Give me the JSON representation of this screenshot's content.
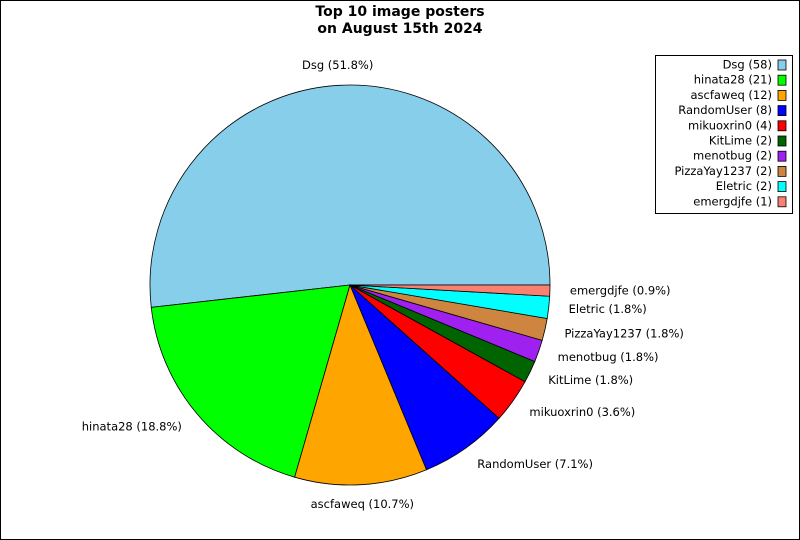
{
  "chart_data": {
    "type": "pie",
    "title": [
      "Top 10 image posters",
      "on August 15th 2024"
    ],
    "categories": [
      "Dsg (58)",
      "hinata28 (21)",
      "ascfaweq (12)",
      "RandomUser (8)",
      "mikuoxrin0 (4)",
      "KitLime (2)",
      "menotbug (2)",
      "PizzaYay1237 (2)",
      "Eletric (2)",
      "emergdjfe (1)"
    ],
    "values": [
      58,
      21,
      12,
      8,
      4,
      2,
      2,
      2,
      2,
      1
    ],
    "value_labels": [
      "Dsg (51.8%)",
      "hinata28 (18.8%)",
      "ascfaweq (10.7%)",
      "RandomUser (7.1%)",
      "mikuoxrin0 (3.6%)",
      "KitLime (1.8%)",
      "menotbug (1.8%)",
      "PizzaYay1237 (1.8%)",
      "Eletric (1.8%)",
      "emergdjfe (0.9%)"
    ],
    "colors": [
      "#87ceeb",
      "#00ff00",
      "#ffa500",
      "#0000ff",
      "#ff0000",
      "#006400",
      "#a020f0",
      "#cd853f",
      "#00ffff",
      "#fa8072"
    ],
    "legend": "upper right"
  }
}
